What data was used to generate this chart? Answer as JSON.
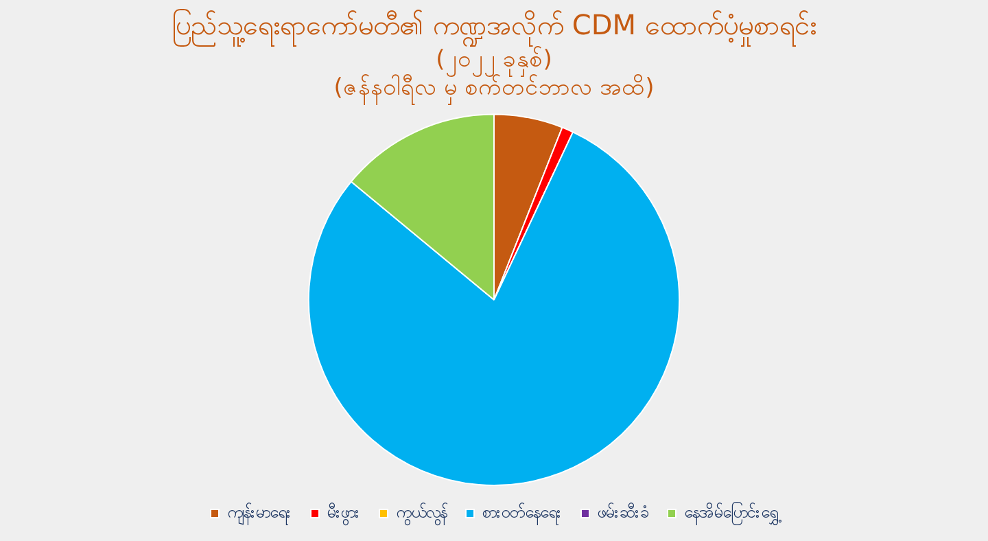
{
  "chart_data": {
    "type": "pie",
    "title": "ပြည်သူ့ရေးရာကော်မတီ၏ ကဏ္ဍအလိုက် CDM ထောက်ပံ့မှုစာရင်း",
    "subtitle": "(၂၀၂၂ ခုနှစ်)\n(ဇန်နဝါရီလ မှ စက်တင်ဘာလ အထိ)",
    "categories": [
      "ကျန်းမာရေး",
      "မီးဖွား",
      "ကွယ်လွန်",
      "စားဝတ်နေရေး",
      "ဖမ်းဆီးခံ",
      "နေအိမ်ပြောင်းရွှေ့"
    ],
    "values": [
      6,
      1,
      0,
      79,
      0,
      14
    ],
    "colors": [
      "#c55a11",
      "#ff0000",
      "#ffc000",
      "#00b0f0",
      "#7030a0",
      "#92d050"
    ],
    "legend": "bottom"
  }
}
